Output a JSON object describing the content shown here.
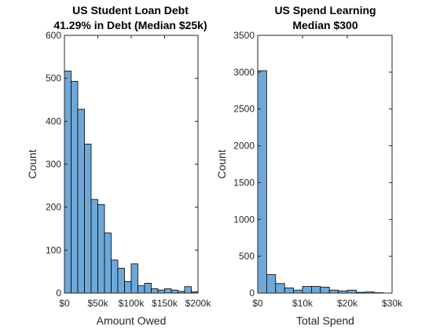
{
  "chart_data": [
    {
      "type": "bar",
      "title": "US Student Loan Debt",
      "subtitle": "41.29% in Debt (Median $25k)",
      "xlabel": "Amount Owed",
      "ylabel": "Count",
      "xlim": [
        0,
        200000
      ],
      "ylim": [
        0,
        600
      ],
      "x_ticks": [
        0,
        50000,
        100000,
        150000,
        200000
      ],
      "x_tick_labels": [
        "$0",
        "$50k",
        "$100k",
        "$150k",
        "$200k"
      ],
      "y_ticks": [
        0,
        100,
        200,
        300,
        400,
        500,
        600
      ],
      "y_tick_labels": [
        "0",
        "100",
        "200",
        "300",
        "400",
        "500",
        "600"
      ],
      "bin_width": 10000,
      "bin_starts": [
        0,
        10000,
        20000,
        30000,
        40000,
        50000,
        60000,
        70000,
        80000,
        90000,
        100000,
        110000,
        120000,
        130000,
        140000,
        150000,
        160000,
        170000,
        180000,
        190000
      ],
      "values": [
        517,
        493,
        428,
        347,
        218,
        206,
        140,
        77,
        58,
        27,
        68,
        17,
        23,
        10,
        7,
        10,
        7,
        4,
        15,
        3
      ],
      "grid": false,
      "bar_color": "#6ea8d8"
    },
    {
      "type": "bar",
      "title": "US Spend Learning",
      "subtitle": "Median $300",
      "xlabel": "Total Spend",
      "ylabel": "Count",
      "xlim": [
        0,
        30000
      ],
      "ylim": [
        0,
        3500
      ],
      "x_ticks": [
        0,
        10000,
        20000,
        30000
      ],
      "x_tick_labels": [
        "$0",
        "$10k",
        "$20k",
        "$30k"
      ],
      "y_ticks": [
        0,
        500,
        1000,
        1500,
        2000,
        2500,
        3000,
        3500
      ],
      "y_tick_labels": [
        "0",
        "500",
        "1000",
        "1500",
        "2000",
        "2500",
        "3000",
        "3500"
      ],
      "bin_width": 2000,
      "bin_starts": [
        0,
        2000,
        4000,
        6000,
        8000,
        10000,
        12000,
        14000,
        16000,
        18000,
        20000,
        22000,
        24000,
        26000,
        28000
      ],
      "values": [
        3020,
        250,
        130,
        70,
        40,
        90,
        90,
        80,
        40,
        30,
        40,
        10,
        15,
        5,
        0
      ],
      "grid": false,
      "bar_color": "#6ea8d8"
    }
  ]
}
